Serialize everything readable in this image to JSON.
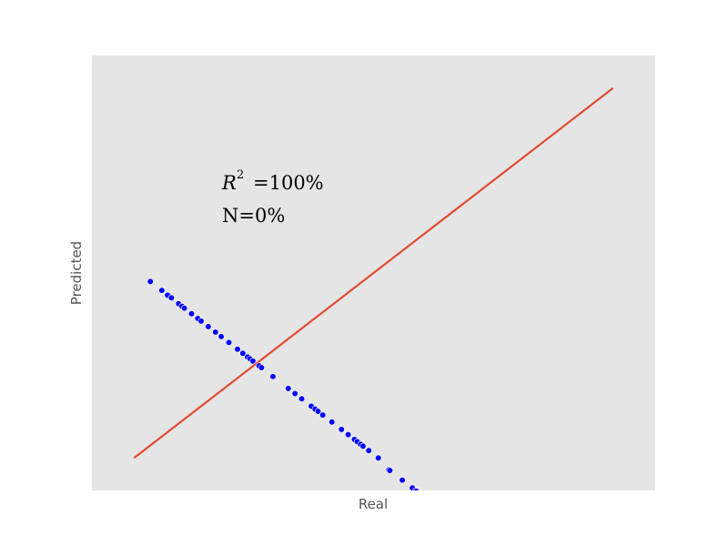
{
  "chart_data": {
    "type": "scatter",
    "xlabel": "Real",
    "ylabel": "Predicted",
    "xlim": [
      -0.088,
      1.088
    ],
    "ylim": [
      -0.088,
      1.088
    ],
    "grid": false,
    "ticks_visible": false,
    "background_color": "#e5e5e5",
    "points_color": "#0000ff",
    "line_color": "#e24a33",
    "annotations": {
      "r2_base": "R",
      "r2_exp": "2",
      "r2_value": "=100%",
      "n_text": "N=0%"
    },
    "reference_line": {
      "x": [
        0.0,
        1.0
      ],
      "y": [
        0.0,
        1.0
      ]
    },
    "series": [
      {
        "x": [
          0.034,
          0.058,
          0.07,
          0.078,
          0.093,
          0.1,
          0.105,
          0.12,
          0.133,
          0.14,
          0.155,
          0.17,
          0.182,
          0.198,
          0.216,
          0.227,
          0.237,
          0.242,
          0.248,
          0.261,
          0.266,
          0.29,
          0.322,
          0.336,
          0.35,
          0.37,
          0.378,
          0.384,
          0.394,
          0.413,
          0.433,
          0.447,
          0.46,
          0.466,
          0.473,
          0.478,
          0.49,
          0.51,
          0.532,
          0.534,
          0.56,
          0.581,
          0.588,
          0.59,
          0.595
        ],
        "y": [
          0.477,
          0.453,
          0.44,
          0.433,
          0.417,
          0.41,
          0.405,
          0.39,
          0.377,
          0.37,
          0.355,
          0.34,
          0.328,
          0.312,
          0.294,
          0.283,
          0.273,
          0.268,
          0.262,
          0.249,
          0.244,
          0.22,
          0.188,
          0.174,
          0.16,
          0.14,
          0.132,
          0.126,
          0.116,
          0.097,
          0.077,
          0.063,
          0.05,
          0.044,
          0.037,
          0.032,
          0.02,
          0.0,
          -0.032,
          -0.034,
          -0.06,
          -0.081,
          -0.088,
          -0.09,
          -0.095
        ]
      }
    ]
  }
}
